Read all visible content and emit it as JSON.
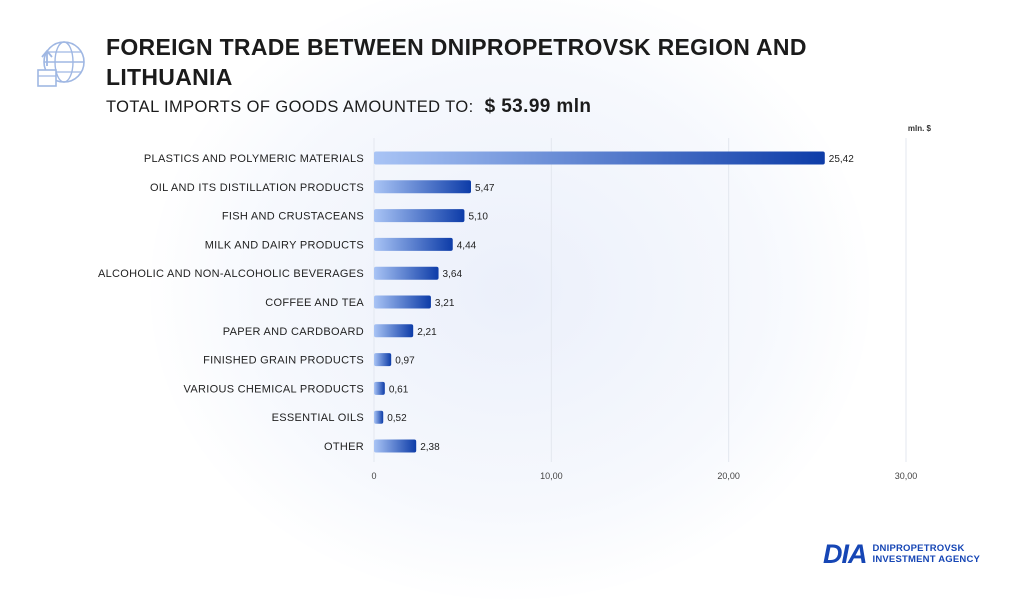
{
  "header": {
    "title": "FOREIGN TRADE BETWEEN DNIPROPETROVSK REGION AND LITHUANIA",
    "subtitle_prefix": "TOTAL IMPORTS OF GOODS AMOUNTED TO:",
    "subtitle_amount": "$ 53.99  mln",
    "icon": "globe-box-arrow-icon"
  },
  "logo": {
    "mark": "DIA",
    "line1": "DNIPROPETROVSK",
    "line2": "INVESTMENT AGENCY"
  },
  "colors": {
    "bar_start": "#a9c4f5",
    "bar_end": "#0d3ca8",
    "title": "#1b1b1b",
    "brand": "#1646b5"
  },
  "chart_data": {
    "type": "bar",
    "orientation": "horizontal",
    "unit": "mln. $",
    "categories": [
      "PLASTICS AND POLYMERIC MATERIALS",
      "OIL AND ITS DISTILLATION PRODUCTS",
      "FISH AND CRUSTACEANS",
      "MILK AND DAIRY PRODUCTS",
      "ALCOHOLIC AND NON-ALCOHOLIC BEVERAGES",
      "COFFEE AND TEA",
      "PAPER AND CARDBOARD",
      "FINISHED GRAIN PRODUCTS",
      "VARIOUS CHEMICAL PRODUCTS",
      "ESSENTIAL OILS",
      "OTHER"
    ],
    "values": [
      25.42,
      5.47,
      5.1,
      4.44,
      3.64,
      3.21,
      2.21,
      0.97,
      0.61,
      0.52,
      2.38
    ],
    "value_labels": [
      "25,42",
      "5,47",
      "5,10",
      "4,44",
      "3,64",
      "3,21",
      "2,21",
      "0,97",
      "0,61",
      "0,52",
      "2,38"
    ],
    "xlim": [
      0,
      30
    ],
    "xticks": [
      0,
      10,
      20,
      30
    ],
    "xtick_labels": [
      "0",
      "10,00",
      "20,00",
      "30,00"
    ],
    "grid": true,
    "legend": "none"
  }
}
